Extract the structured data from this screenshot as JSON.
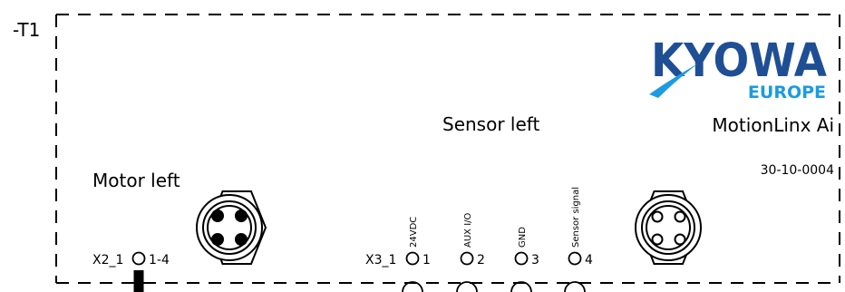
{
  "device": {
    "designation": "-T1",
    "model": "MotionLinx Ai",
    "part_number": "30-10-0004"
  },
  "logo": {
    "brand": "KYOWA",
    "region": "EUROPE",
    "brand_color": "#1e4f95",
    "accent_color": "#1c9be0"
  },
  "sections": {
    "sensor_title": "Sensor left",
    "motor_title": "Motor left"
  },
  "motor_terminal": {
    "name": "X2_1",
    "pins": "1-4"
  },
  "sensor_terminal": {
    "name": "X3_1",
    "pins": [
      {
        "number": "1",
        "label": "24VDC"
      },
      {
        "number": "2",
        "label": "AUX I/O"
      },
      {
        "number": "3",
        "label": "GND"
      },
      {
        "number": "4",
        "label": "Sensor signal"
      }
    ]
  },
  "connectors": {
    "motor": {
      "pin_style": "filled",
      "pin_count": 4
    },
    "sensor": {
      "pin_style": "hollow",
      "pin_count": 4
    }
  }
}
